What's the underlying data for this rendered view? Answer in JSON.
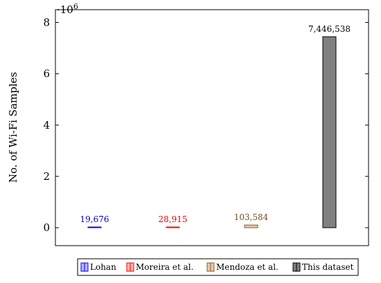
{
  "chart_data": {
    "type": "bar",
    "categories": [
      "Lohan",
      "Moreira et al.",
      "Mendoza et al.",
      "This dataset"
    ],
    "values": [
      19676,
      28915,
      103584,
      7446538
    ],
    "data_labels": [
      "19,676",
      "28,915",
      "103,584",
      "7,446,538"
    ],
    "title": "",
    "xlabel": "",
    "ylabel": "No. of Wi-Fi Samples",
    "ylim": [
      -700000,
      8500000
    ],
    "yticks": [
      0,
      2000000,
      4000000,
      6000000,
      8000000
    ],
    "ytick_labels": [
      "0",
      "2",
      "4",
      "6",
      "8"
    ],
    "y_multiplier_base": "·10",
    "y_multiplier_exp": "6",
    "grid": false,
    "legend_position": "bottom-center",
    "series": [
      {
        "name": "Lohan",
        "fill": "#b3b3ff",
        "stroke": "#0000ff",
        "label_color": "#0000cc"
      },
      {
        "name": "Moreira et al.",
        "fill": "#ffb3b3",
        "stroke": "#ff0000",
        "label_color": "#ee0000"
      },
      {
        "name": "Mendoza et al.",
        "fill": "#e8c9ad",
        "stroke": "#8b5a2b",
        "label_color": "#7a4a20"
      },
      {
        "name": "This dataset",
        "fill": "#808080",
        "stroke": "#000000",
        "label_color": "#000000"
      }
    ]
  }
}
